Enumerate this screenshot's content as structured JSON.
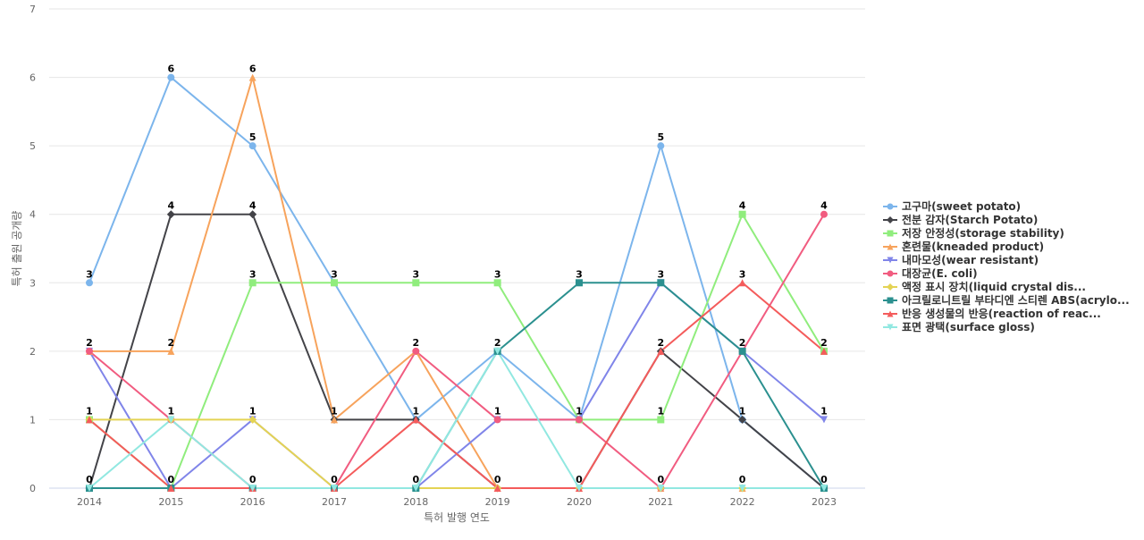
{
  "chart_data": {
    "type": "line",
    "x": [
      "2014",
      "2015",
      "2016",
      "2017",
      "2018",
      "2019",
      "2020",
      "2021",
      "2022",
      "2023"
    ],
    "xlabel": "특허 발행 연도",
    "ylabel": "특허 출원 공개량",
    "ylim": [
      0,
      7
    ],
    "yticks": [
      0,
      1,
      2,
      3,
      4,
      5,
      6,
      7
    ],
    "grid": true,
    "legend_position": "right",
    "series": [
      {
        "name": "고구마(sweet potato)",
        "color": "#7cb5ec",
        "marker": "circle",
        "values": [
          3,
          6,
          5,
          3,
          1,
          2,
          1,
          5,
          1,
          0
        ]
      },
      {
        "name": "전분 감자(Starch Potato)",
        "color": "#434348",
        "marker": "diamond",
        "values": [
          0,
          4,
          4,
          1,
          1,
          0,
          0,
          2,
          1,
          0
        ]
      },
      {
        "name": "저장 안정성(storage stability)",
        "color": "#90ed7d",
        "marker": "square",
        "values": [
          1,
          0,
          3,
          3,
          3,
          3,
          1,
          1,
          4,
          2
        ]
      },
      {
        "name": "혼련물(kneaded product)",
        "color": "#f7a35c",
        "marker": "triangle",
        "values": [
          2,
          2,
          6,
          1,
          2,
          0,
          0,
          0,
          0,
          0
        ]
      },
      {
        "name": "내마모성(wear resistant)",
        "color": "#8085e9",
        "marker": "triangle-down",
        "values": [
          2,
          0,
          1,
          0,
          0,
          1,
          1,
          3,
          2,
          1
        ]
      },
      {
        "name": "대장균(E. coli)",
        "color": "#f15c80",
        "marker": "circle",
        "values": [
          2,
          1,
          0,
          0,
          2,
          1,
          1,
          0,
          2,
          4
        ]
      },
      {
        "name": "액정 표시 장치(liquid crystal dis...",
        "color": "#e4d354",
        "marker": "diamond",
        "values": [
          1,
          1,
          1,
          0,
          0,
          0,
          0,
          0,
          0,
          0
        ]
      },
      {
        "name": "아크릴로니트릴 부타디엔 스티렌 ABS(acrylo...",
        "color": "#2b908f",
        "marker": "square",
        "values": [
          0,
          0,
          0,
          0,
          0,
          2,
          3,
          3,
          2,
          0
        ]
      },
      {
        "name": "반응 생성물의 반응(reaction of reac...",
        "color": "#f45b5b",
        "marker": "triangle",
        "values": [
          1,
          0,
          0,
          0,
          1,
          0,
          0,
          2,
          3,
          2
        ]
      },
      {
        "name": "표면 광택(surface gloss)",
        "color": "#91e8e1",
        "marker": "triangle-down",
        "values": [
          0,
          1,
          0,
          0,
          0,
          2,
          0,
          0,
          0,
          0
        ]
      }
    ]
  }
}
